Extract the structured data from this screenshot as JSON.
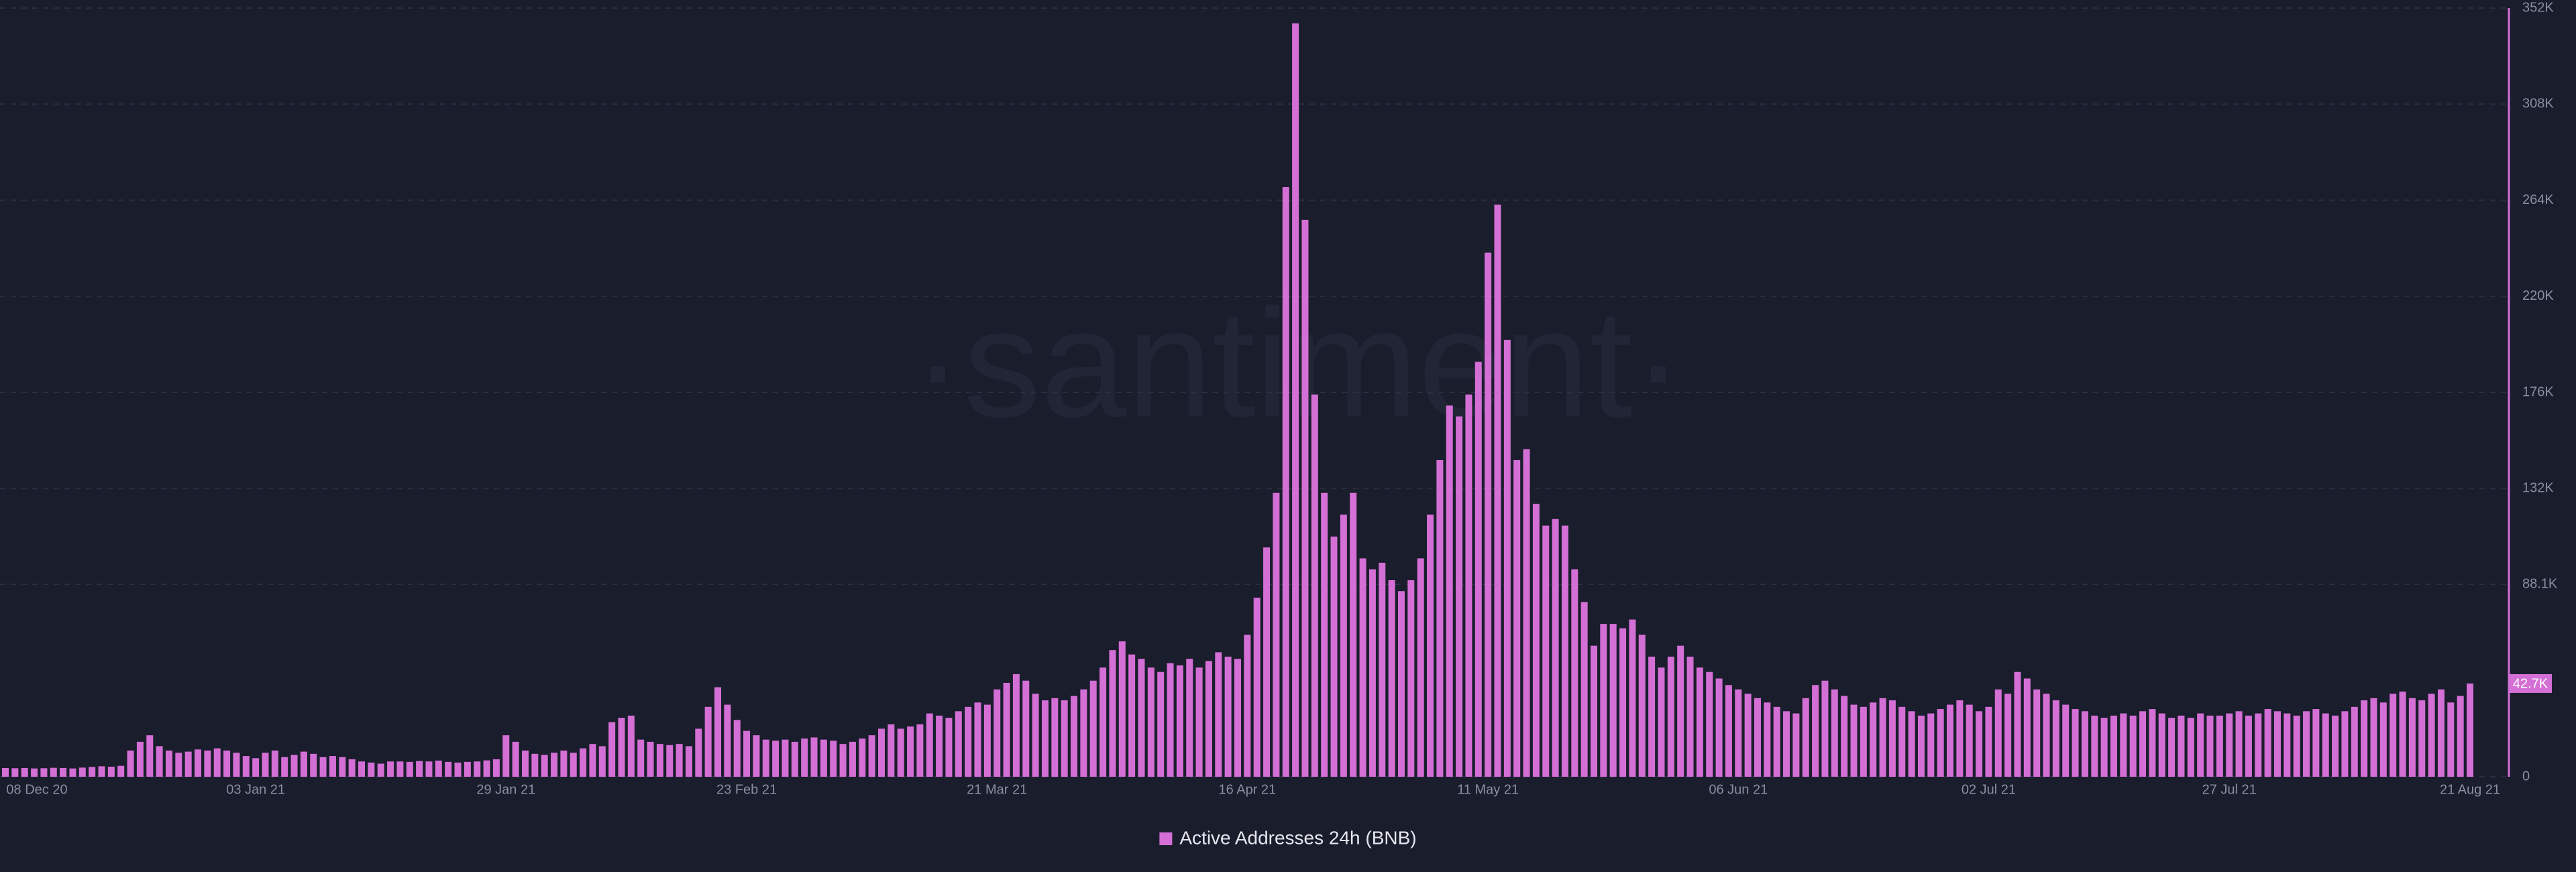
{
  "chart_data": {
    "type": "bar",
    "watermark": "·santiment·",
    "legend": "Active Addresses 24h (BNB)",
    "color": "#d46fd6",
    "grid": true,
    "ylim": [
      0,
      352000
    ],
    "yticks": [
      0,
      {
        "value": 88100,
        "label": "88.1K"
      },
      {
        "value": 132000,
        "label": "132K"
      },
      {
        "value": 176000,
        "label": "176K"
      },
      {
        "value": 220000,
        "label": "220K"
      },
      {
        "value": 264000,
        "label": "264K"
      },
      {
        "value": 308000,
        "label": "308K"
      },
      {
        "value": 352000,
        "label": "352K"
      }
    ],
    "current_value": {
      "value": 42700,
      "label": "42.7K"
    },
    "categories": [
      "08 Dec 20",
      null,
      null,
      null,
      null,
      null,
      null,
      null,
      null,
      null,
      null,
      null,
      null,
      null,
      null,
      null,
      null,
      null,
      null,
      null,
      null,
      null,
      null,
      null,
      null,
      null,
      "03 Jan 21",
      null,
      null,
      null,
      null,
      null,
      null,
      null,
      null,
      null,
      null,
      null,
      null,
      null,
      null,
      null,
      null,
      null,
      null,
      null,
      null,
      null,
      null,
      null,
      null,
      null,
      "29 Jan 21",
      null,
      null,
      null,
      null,
      null,
      null,
      null,
      null,
      null,
      null,
      null,
      null,
      null,
      null,
      null,
      null,
      null,
      null,
      null,
      null,
      null,
      null,
      null,
      null,
      "23 Feb 21",
      null,
      null,
      null,
      null,
      null,
      null,
      null,
      null,
      null,
      null,
      null,
      null,
      null,
      null,
      null,
      null,
      null,
      null,
      null,
      null,
      null,
      null,
      null,
      null,
      null,
      "21 Mar 21",
      null,
      null,
      null,
      null,
      null,
      null,
      null,
      null,
      null,
      null,
      null,
      null,
      null,
      null,
      null,
      null,
      null,
      null,
      null,
      null,
      null,
      null,
      null,
      null,
      null,
      "16 Apr 21",
      null,
      null,
      null,
      null,
      null,
      null,
      null,
      null,
      null,
      null,
      null,
      null,
      null,
      null,
      null,
      null,
      null,
      null,
      null,
      null,
      null,
      null,
      null,
      null,
      "11 May 21",
      null,
      null,
      null,
      null,
      null,
      null,
      null,
      null,
      null,
      null,
      null,
      null,
      null,
      null,
      null,
      null,
      null,
      null,
      null,
      null,
      null,
      null,
      null,
      null,
      null,
      "06 Jun 21",
      null,
      null,
      null,
      null,
      null,
      null,
      null,
      null,
      null,
      null,
      null,
      null,
      null,
      null,
      null,
      null,
      null,
      null,
      null,
      null,
      null,
      null,
      null,
      null,
      null,
      "02 Jul 21",
      null,
      null,
      null,
      null,
      null,
      null,
      null,
      null,
      null,
      null,
      null,
      null,
      null,
      null,
      null,
      null,
      null,
      null,
      null,
      null,
      null,
      null,
      null,
      null,
      "27 Jul 21",
      null,
      null,
      null,
      null,
      null,
      null,
      null,
      null,
      null,
      null,
      null,
      null,
      null,
      null,
      null,
      null,
      null,
      null,
      null,
      null,
      null,
      null,
      null,
      null,
      "21 Aug 21"
    ],
    "values": [
      4000,
      3900,
      4000,
      3800,
      3900,
      4100,
      4000,
      3800,
      4200,
      4500,
      4800,
      4600,
      5000,
      12000,
      16000,
      19000,
      14000,
      12000,
      11000,
      11500,
      12500,
      12000,
      13000,
      12000,
      11000,
      9500,
      8500,
      11000,
      12000,
      9000,
      10000,
      11500,
      10500,
      9000,
      9500,
      9000,
      8000,
      7000,
      6500,
      6000,
      7000,
      7000,
      6800,
      7200,
      7000,
      7400,
      6800,
      6500,
      6800,
      7000,
      7500,
      8000,
      19000,
      16000,
      12000,
      10500,
      10000,
      11000,
      12000,
      11000,
      13000,
      15000,
      14000,
      25000,
      27000,
      28000,
      17000,
      16000,
      15000,
      14500,
      15000,
      14000,
      22000,
      32000,
      41000,
      33000,
      26000,
      21000,
      19000,
      17000,
      16500,
      17000,
      16000,
      17500,
      18000,
      17000,
      16500,
      15000,
      16000,
      17500,
      19000,
      22000,
      24000,
      22000,
      23000,
      24000,
      29000,
      28000,
      27000,
      30000,
      32000,
      34000,
      33000,
      40000,
      43000,
      47000,
      44000,
      38000,
      35000,
      36000,
      35000,
      37000,
      40000,
      44000,
      50000,
      58000,
      62000,
      56000,
      54000,
      50000,
      48000,
      52000,
      51000,
      54000,
      50000,
      53000,
      57000,
      55000,
      54000,
      65000,
      82000,
      105000,
      130000,
      270000,
      345000,
      255000,
      175000,
      130000,
      110000,
      120000,
      130000,
      100000,
      95000,
      98000,
      90000,
      85000,
      90000,
      100000,
      120000,
      145000,
      170000,
      165000,
      175000,
      190000,
      240000,
      262000,
      200000,
      145000,
      150000,
      125000,
      115000,
      118000,
      115000,
      95000,
      80000,
      60000,
      70000,
      70000,
      68000,
      72000,
      65000,
      55000,
      50000,
      55000,
      60000,
      55000,
      50000,
      48000,
      45000,
      42000,
      40000,
      38000,
      36000,
      34000,
      32000,
      30000,
      29000,
      36000,
      42000,
      44000,
      40000,
      37000,
      33000,
      32000,
      34000,
      36000,
      35000,
      32000,
      30000,
      28000,
      29000,
      31000,
      33000,
      35000,
      33000,
      30000,
      32000,
      40000,
      38000,
      48000,
      45000,
      40000,
      38000,
      35000,
      33000,
      31000,
      30000,
      28000,
      27000,
      28000,
      29000,
      28000,
      30000,
      31000,
      29000,
      27000,
      28000,
      27000,
      29000,
      28000,
      28000,
      29000,
      30000,
      28000,
      29000,
      31000,
      30000,
      29000,
      28000,
      30000,
      31000,
      29000,
      28000,
      30000,
      32000,
      35000,
      36000,
      34000,
      38000,
      39000,
      36000,
      35000,
      38000,
      40000,
      34000,
      37000,
      42700
    ]
  }
}
